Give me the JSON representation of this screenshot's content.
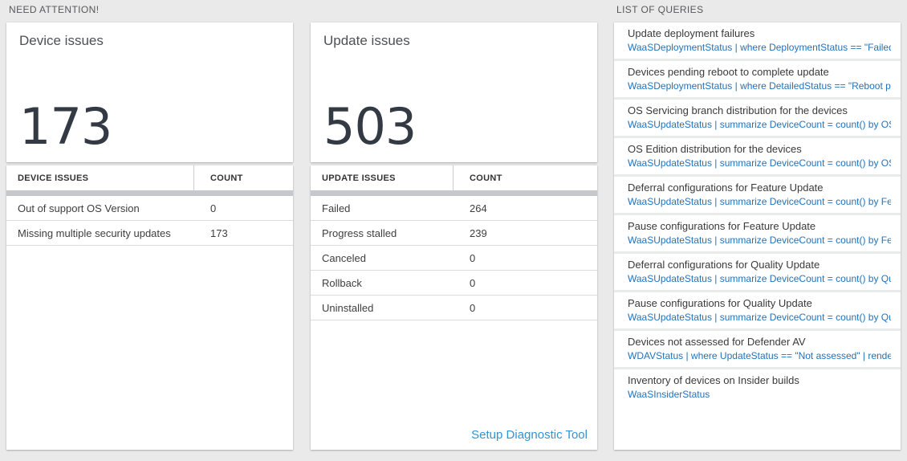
{
  "sections": {
    "need_attention_label": "NEED ATTENTION!",
    "list_of_queries_label": "LIST OF QUERIES"
  },
  "colors": {
    "page_bg": "#eaeaea",
    "card_bg": "#ffffff",
    "big_number": "#333a44",
    "query_link_blue": "#2472b8",
    "setup_link_blue": "#2f93d7",
    "table_scrollbar": "#c5c8cc"
  },
  "device_panel": {
    "title": "Device issues",
    "total": "173",
    "table": {
      "headers": {
        "issue": "DEVICE ISSUES",
        "count": "COUNT"
      },
      "rows": [
        {
          "label": "Out of support OS Version",
          "count": "0"
        },
        {
          "label": "Missing multiple security updates",
          "count": "173"
        }
      ]
    }
  },
  "update_panel": {
    "title": "Update issues",
    "total": "503",
    "table": {
      "headers": {
        "issue": "UPDATE ISSUES",
        "count": "COUNT"
      },
      "rows": [
        {
          "label": "Failed",
          "count": "264"
        },
        {
          "label": "Progress stalled",
          "count": "239"
        },
        {
          "label": "Canceled",
          "count": "0"
        },
        {
          "label": "Rollback",
          "count": "0"
        },
        {
          "label": "Uninstalled",
          "count": "0"
        }
      ]
    },
    "footer_link": "Setup Diagnostic Tool"
  },
  "queries": {
    "items": [
      {
        "title": "Update deployment failures",
        "query": "WaaSDeploymentStatus | where DeploymentStatus == \"Failed\" |..."
      },
      {
        "title": "Devices pending reboot to complete update",
        "query": "WaaSDeploymentStatus | where DetailedStatus == \"Reboot pend..."
      },
      {
        "title": "OS Servicing branch distribution for the devices",
        "query": "WaaSUpdateStatus | summarize DeviceCount = count() by OSSer..."
      },
      {
        "title": "OS Edition distribution for the devices",
        "query": "WaaSUpdateStatus | summarize DeviceCount = count() by OSEdit..."
      },
      {
        "title": "Deferral configurations for Feature Update",
        "query": "WaaSUpdateStatus | summarize DeviceCount = count() by Featur..."
      },
      {
        "title": "Pause configurations for Feature Update",
        "query": "WaaSUpdateStatus | summarize DeviceCount = count() by Featur..."
      },
      {
        "title": "Deferral configurations for Quality Update",
        "query": "WaaSUpdateStatus | summarize DeviceCount = count() by Qualit..."
      },
      {
        "title": "Pause configurations for Quality Update",
        "query": "WaaSUpdateStatus | summarize DeviceCount = count() by Qualit..."
      },
      {
        "title": "Devices not assessed for Defender AV",
        "query": "WDAVStatus | where UpdateStatus == \"Not assessed\" | render ta..."
      },
      {
        "title": "Inventory of devices on Insider builds",
        "query": "WaaSInsiderStatus"
      }
    ]
  }
}
